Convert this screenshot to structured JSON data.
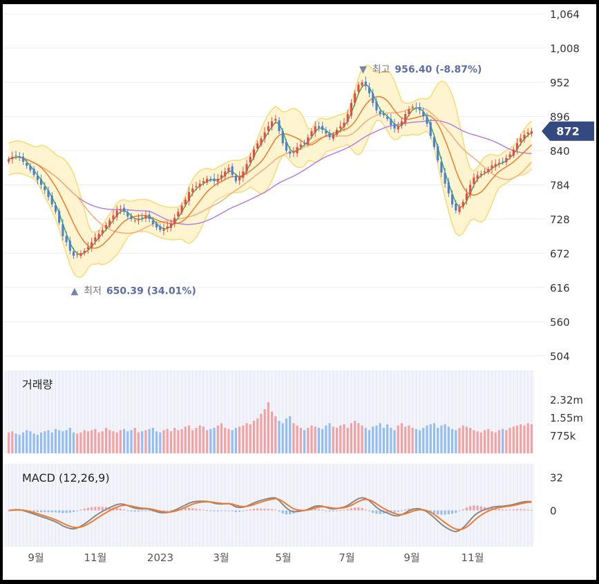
{
  "chart_data": {
    "type": "candlestick",
    "price_axis": {
      "ticks": [
        "1,064",
        "1,008",
        "952",
        "896",
        "840",
        "784",
        "728",
        "672",
        "616",
        "560",
        "504"
      ],
      "range": [
        480,
        1080
      ]
    },
    "current_price": "872",
    "annotations": {
      "high": {
        "marker": "▼",
        "label": "최고",
        "value": "956.40 (-8.87%)",
        "price": 956.4
      },
      "low": {
        "marker": "▲",
        "label": "최저",
        "value": "650.39 (34.01%)",
        "price": 650.39
      }
    },
    "x_ticks": [
      "9월",
      "11월",
      "2023",
      "3월",
      "5월",
      "7월",
      "9월",
      "11월"
    ],
    "price_close": [
      826,
      830,
      832,
      829,
      822,
      815,
      808,
      800,
      792,
      784,
      775,
      764,
      752,
      740,
      722,
      700,
      690,
      676,
      668,
      670,
      672,
      676,
      682,
      690,
      698,
      704,
      710,
      718,
      726,
      734,
      742,
      744,
      740,
      732,
      728,
      726,
      728,
      730,
      734,
      728,
      720,
      714,
      710,
      712,
      716,
      720,
      730,
      740,
      750,
      760,
      772,
      778,
      782,
      786,
      790,
      794,
      792,
      790,
      794,
      800,
      806,
      812,
      800,
      790,
      798,
      806,
      818,
      830,
      842,
      852,
      860,
      870,
      880,
      888,
      892,
      872,
      852,
      840,
      835,
      838,
      846,
      850,
      852,
      862,
      872,
      880,
      878,
      874,
      868,
      862,
      866,
      874,
      880,
      886,
      900,
      918,
      934,
      948,
      952,
      946,
      934,
      918,
      906,
      900,
      898,
      892,
      882,
      876,
      880,
      888,
      900,
      908,
      912,
      910,
      906,
      896,
      884,
      864,
      846,
      824,
      804,
      786,
      770,
      752,
      742,
      748,
      756,
      770,
      784,
      796,
      800,
      802,
      806,
      810,
      816,
      818,
      820,
      822,
      828,
      834,
      842,
      852,
      860,
      866,
      870,
      872
    ],
    "volume": {
      "ticks": [
        "2.32m",
        "1.55m",
        "775k"
      ],
      "tick_values": [
        2320000,
        1550000,
        775000
      ],
      "title": "거래량",
      "values": [
        0.9,
        0.95,
        0.85,
        0.8,
        0.9,
        1.0,
        0.95,
        0.85,
        0.8,
        0.9,
        0.95,
        1.0,
        0.9,
        1.05,
        1.0,
        0.95,
        1.0,
        1.1,
        0.9,
        0.85,
        0.9,
        1.0,
        0.95,
        1.0,
        1.05,
        0.9,
        0.95,
        1.1,
        1.0,
        0.95,
        0.9,
        1.0,
        1.05,
        0.95,
        1.0,
        1.1,
        0.9,
        0.95,
        1.0,
        1.05,
        1.1,
        0.95,
        0.9,
        1.0,
        1.05,
        0.95,
        1.1,
        1.0,
        1.05,
        1.15,
        1.2,
        1.0,
        1.1,
        1.2,
        1.15,
        1.0,
        1.05,
        1.1,
        1.2,
        1.3,
        1.1,
        1.05,
        1.0,
        1.1,
        1.15,
        1.2,
        1.3,
        1.25,
        1.4,
        1.5,
        1.7,
        1.9,
        2.2,
        1.8,
        1.6,
        1.4,
        1.3,
        1.5,
        1.6,
        1.3,
        1.2,
        1.1,
        1.0,
        1.1,
        1.2,
        1.15,
        1.1,
        1.05,
        1.2,
        1.3,
        1.15,
        1.1,
        1.2,
        1.25,
        1.1,
        1.3,
        1.4,
        1.3,
        1.2,
        1.1,
        1.0,
        1.15,
        1.2,
        1.3,
        1.1,
        1.25,
        1.1,
        1.0,
        1.2,
        1.3,
        1.15,
        1.2,
        1.1,
        1.05,
        1.0,
        1.1,
        1.2,
        1.25,
        1.3,
        1.1,
        1.2,
        1.25,
        1.15,
        1.05,
        1.0,
        1.1,
        1.2,
        1.15,
        1.1,
        1.0,
        0.95,
        0.9,
        1.0,
        1.05,
        0.95,
        0.9,
        1.0,
        1.05,
        1.0,
        1.1,
        1.15,
        1.2,
        1.25,
        1.2,
        1.3,
        1.25
      ]
    },
    "macd": {
      "title": "MACD (12,26,9)",
      "ticks": [
        "32",
        "0"
      ],
      "tick_values": [
        32,
        0
      ],
      "range": [
        -35,
        45
      ]
    },
    "colors": {
      "up": "#e8484a",
      "down": "#4a7fd4",
      "volume_up": "#f2a1a3",
      "volume_down": "#93bdf0",
      "band_fill": "#fff4d0",
      "band_line": "#f8dc7a",
      "ma5": "#38b24a",
      "ma20": "#f07a2c",
      "ma60": "#f5ad78",
      "ma120": "#b47ee8",
      "macd_line": "#888888",
      "signal_line": "#f07a2c",
      "price_tag": "#324a80",
      "annotation": "#5b6ea8"
    }
  }
}
